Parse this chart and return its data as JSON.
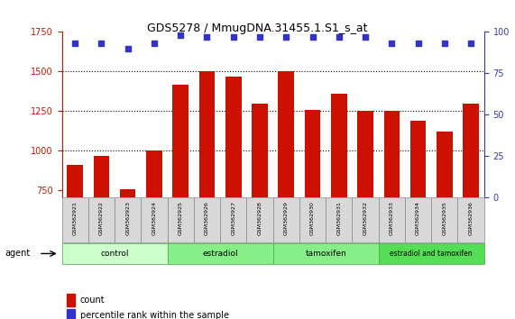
{
  "title": "GDS5278 / MmugDNA.31455.1.S1_s_at",
  "samples": [
    "GSM362921",
    "GSM362922",
    "GSM362923",
    "GSM362924",
    "GSM362925",
    "GSM362926",
    "GSM362927",
    "GSM362928",
    "GSM362929",
    "GSM362930",
    "GSM362931",
    "GSM362932",
    "GSM362933",
    "GSM362934",
    "GSM362935",
    "GSM362936"
  ],
  "counts": [
    910,
    965,
    755,
    1000,
    1415,
    1500,
    1465,
    1295,
    1500,
    1255,
    1360,
    1250,
    1250,
    1185,
    1120,
    1295
  ],
  "percentile_ranks": [
    93,
    93,
    90,
    93,
    98,
    97,
    97,
    97,
    97,
    97,
    97,
    97,
    93,
    93,
    93,
    93
  ],
  "bar_color": "#cc1100",
  "dot_color": "#3333cc",
  "ylim_left": [
    700,
    1750
  ],
  "ylim_right": [
    0,
    100
  ],
  "yticks_left": [
    750,
    1000,
    1250,
    1500,
    1750
  ],
  "yticks_right": [
    0,
    25,
    50,
    75,
    100
  ],
  "groups": [
    {
      "label": "control",
      "start": 0,
      "end": 4,
      "color": "#ccffcc"
    },
    {
      "label": "estradiol",
      "start": 4,
      "end": 8,
      "color": "#88ee88"
    },
    {
      "label": "tamoxifen",
      "start": 8,
      "end": 12,
      "color": "#88ee88"
    },
    {
      "label": "estradiol and tamoxifen",
      "start": 12,
      "end": 16,
      "color": "#55dd55"
    }
  ],
  "legend_count_label": "count",
  "legend_pct_label": "percentile rank within the sample",
  "agent_label": "agent",
  "background_color": "#ffffff",
  "plot_bg_color": "#ffffff",
  "grid_color": "#000000"
}
